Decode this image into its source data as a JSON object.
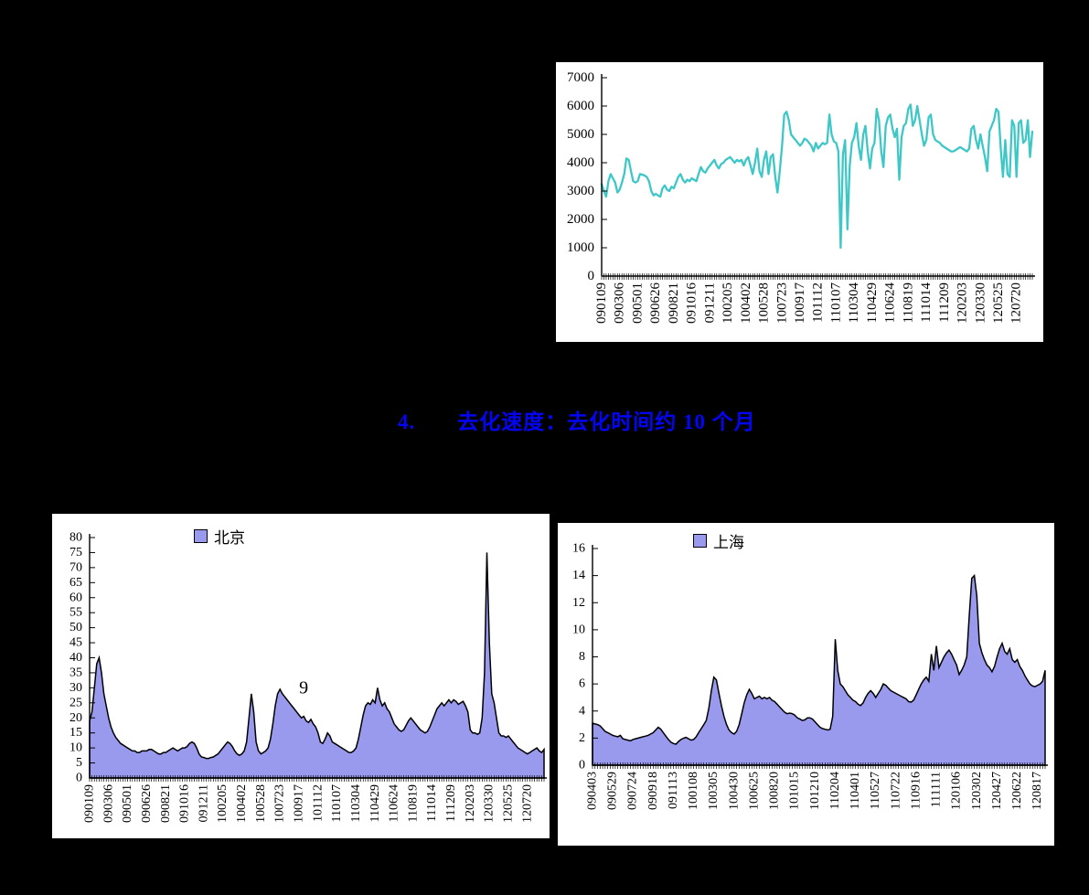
{
  "page": {
    "background": "#000000"
  },
  "heading": {
    "number": "4.",
    "text": "去化速度：去化时间约 10 个月",
    "color": "#0505F5"
  },
  "chart_data": [
    {
      "id": "weekly-volume",
      "type": "line",
      "line_color": "#3EC7C7",
      "ylim": [
        0,
        7000
      ],
      "ystep": 1000,
      "label_every": 8,
      "legend_position": "none",
      "grid": false,
      "x_labels": [
        "090109",
        "090306",
        "090501",
        "090626",
        "090821",
        "091016",
        "091211",
        "100205",
        "100402",
        "100528",
        "100723",
        "100917",
        "101112",
        "110107",
        "110304",
        "110429",
        "110624",
        "110819",
        "111014",
        "111209",
        "120203",
        "120330",
        "120525",
        "120720"
      ],
      "values": [
        3250,
        3000,
        2800,
        3350,
        3600,
        3450,
        3300,
        2950,
        3050,
        3300,
        3600,
        4150,
        4100,
        3700,
        3350,
        3300,
        3350,
        3600,
        3580,
        3550,
        3500,
        3350,
        3000,
        2850,
        2900,
        2850,
        2800,
        3100,
        3200,
        3050,
        3000,
        3150,
        3100,
        3300,
        3500,
        3600,
        3400,
        3300,
        3400,
        3350,
        3450,
        3400,
        3350,
        3600,
        3850,
        3700,
        3650,
        3800,
        3900,
        4000,
        4100,
        3900,
        3800,
        3950,
        4000,
        4100,
        4150,
        4200,
        4100,
        4000,
        4100,
        4050,
        4100,
        3900,
        4100,
        4200,
        3900,
        3600,
        4000,
        4500,
        3700,
        3500,
        4100,
        4400,
        3600,
        4200,
        4300,
        3500,
        2950,
        3700,
        4600,
        5700,
        5800,
        5500,
        5000,
        4900,
        4800,
        4700,
        4600,
        4700,
        4850,
        4800,
        4700,
        4600,
        4400,
        4700,
        4500,
        4600,
        4700,
        4650,
        4700,
        5700,
        5000,
        4750,
        4700,
        4400,
        1000,
        4300,
        4800,
        1650,
        3900,
        4700,
        4900,
        5400,
        4600,
        4100,
        5000,
        5300,
        4400,
        3800,
        4500,
        4700,
        5900,
        5500,
        4400,
        3850,
        5300,
        5600,
        5700,
        5200,
        4900,
        5200,
        3400,
        4900,
        5300,
        5400,
        5900,
        6050,
        5300,
        5500,
        6000,
        5500,
        5000,
        4600,
        4800,
        5600,
        5700,
        5000,
        4800,
        4750,
        4700,
        4600,
        4550,
        4500,
        4450,
        4400,
        4400,
        4450,
        4500,
        4550,
        4500,
        4450,
        4400,
        4500,
        5200,
        5300,
        4800,
        4500,
        5000,
        4600,
        4200,
        3700,
        5100,
        5300,
        5500,
        5900,
        5800,
        4500,
        3500,
        4800,
        3600,
        3500,
        5500,
        5300,
        3500,
        5400,
        5500,
        4700,
        4800,
        5500,
        4200,
        5100
      ]
    },
    {
      "id": "beijing-months",
      "type": "area",
      "legend": "北京",
      "fill_color": "#9999EE",
      "stroke_color": "#000000",
      "ylim": [
        0,
        80
      ],
      "ystep": 5,
      "label_every": 8,
      "legend_position": "top-center",
      "grid": false,
      "annotation": {
        "text": "9",
        "x_frac": 0.471,
        "value": 30
      },
      "x_labels": [
        "090109",
        "090306",
        "090501",
        "090626",
        "090821",
        "091016",
        "091211",
        "100205",
        "100402",
        "100528",
        "100723",
        "100917",
        "101112",
        "110107",
        "110304",
        "110429",
        "110624",
        "110819",
        "111014",
        "111209",
        "120203",
        "120330",
        "120525",
        "120720"
      ],
      "values": [
        19,
        22,
        30,
        38,
        40,
        35,
        28,
        24,
        20,
        17,
        15,
        13.5,
        12.5,
        11.5,
        11,
        10.5,
        10,
        9.5,
        9,
        9,
        8.5,
        8.5,
        9,
        9,
        9,
        9.5,
        9.5,
        9,
        8.5,
        8,
        8,
        8.5,
        8.5,
        9,
        9.5,
        10,
        9.5,
        9,
        9.5,
        10,
        10,
        10.5,
        11.5,
        12,
        11.5,
        10,
        8,
        7,
        6.8,
        6.5,
        6.5,
        6.8,
        7,
        7.5,
        8,
        9,
        10,
        11,
        12,
        11.5,
        10.5,
        9,
        8,
        7.5,
        8,
        9,
        12,
        20,
        28,
        22,
        12,
        9,
        8,
        8.5,
        9,
        10,
        13,
        18,
        24,
        28,
        29.5,
        28,
        27,
        26,
        25,
        24,
        23,
        22,
        21,
        20,
        20.5,
        19,
        18.5,
        19.5,
        18,
        17,
        15,
        12,
        11.5,
        13,
        15,
        14,
        12,
        11.5,
        11,
        10.5,
        10,
        9.5,
        9,
        8.5,
        8.5,
        9,
        10,
        13,
        17,
        21,
        24,
        25,
        24.5,
        26,
        25,
        30,
        26,
        24,
        25,
        23,
        22,
        20,
        18,
        17,
        16,
        15.5,
        16,
        17.5,
        19,
        20,
        19,
        18,
        17,
        16,
        15.5,
        15,
        15.5,
        17,
        19,
        21,
        23,
        24,
        25,
        24,
        25,
        26,
        25,
        26,
        25.5,
        24.5,
        25,
        25.5,
        24,
        22,
        16,
        15,
        15,
        14.5,
        15,
        20,
        35,
        75,
        45,
        28,
        25,
        20,
        15,
        14,
        14,
        13.5,
        14,
        13,
        12,
        11,
        10,
        9.5,
        9,
        8.5,
        8,
        8.5,
        9,
        9.5,
        10,
        9,
        8.5,
        9.5
      ]
    },
    {
      "id": "shanghai-months",
      "type": "area",
      "legend": "上海",
      "fill_color": "#9999EE",
      "stroke_color": "#000000",
      "ylim": [
        0,
        16
      ],
      "ystep": 2,
      "label_every": 8,
      "legend_position": "top-center",
      "grid": false,
      "x_labels": [
        "090403",
        "090529",
        "090724",
        "090918",
        "091113",
        "100108",
        "100305",
        "100430",
        "100625",
        "100820",
        "101015",
        "101210",
        "110204",
        "110401",
        "110527",
        "110722",
        "110916",
        "111111",
        "120106",
        "120302",
        "120427",
        "120622",
        "120817"
      ],
      "values": [
        3.1,
        3.05,
        3.0,
        2.9,
        2.7,
        2.5,
        2.4,
        2.3,
        2.2,
        2.15,
        2.1,
        2.2,
        1.95,
        1.9,
        1.85,
        1.8,
        1.9,
        1.95,
        2.0,
        2.05,
        2.1,
        2.15,
        2.2,
        2.3,
        2.4,
        2.6,
        2.8,
        2.65,
        2.4,
        2.15,
        1.9,
        1.7,
        1.6,
        1.55,
        1.75,
        1.9,
        2.0,
        2.05,
        1.95,
        1.85,
        1.9,
        2.1,
        2.4,
        2.7,
        3.0,
        3.3,
        4.2,
        5.5,
        6.5,
        6.3,
        5.3,
        4.4,
        3.6,
        3.0,
        2.6,
        2.4,
        2.3,
        2.5,
        3.0,
        3.8,
        4.6,
        5.2,
        5.6,
        5.3,
        4.9,
        5.0,
        5.1,
        4.9,
        5.0,
        4.9,
        5.0,
        4.8,
        4.7,
        4.5,
        4.3,
        4.1,
        3.9,
        3.8,
        3.85,
        3.8,
        3.7,
        3.5,
        3.4,
        3.3,
        3.35,
        3.5,
        3.5,
        3.4,
        3.2,
        3.0,
        2.8,
        2.7,
        2.65,
        2.6,
        2.65,
        3.6,
        9.3,
        7.0,
        6.0,
        5.8,
        5.5,
        5.2,
        5.0,
        4.8,
        4.7,
        4.5,
        4.4,
        4.6,
        5.0,
        5.3,
        5.5,
        5.3,
        5.0,
        5.3,
        5.6,
        6.0,
        5.9,
        5.7,
        5.5,
        5.4,
        5.3,
        5.2,
        5.1,
        5.0,
        4.9,
        4.7,
        4.65,
        4.8,
        5.2,
        5.6,
        6.0,
        6.3,
        6.5,
        6.2,
        8.2,
        7.0,
        8.8,
        7.2,
        7.6,
        8.0,
        8.3,
        8.5,
        8.2,
        7.8,
        7.4,
        6.7,
        7.0,
        7.4,
        8.0,
        11.0,
        13.8,
        14.0,
        12.5,
        9.0,
        8.3,
        7.8,
        7.4,
        7.2,
        6.9,
        7.3,
        8.0,
        8.6,
        9.0,
        8.4,
        8.2,
        8.6,
        7.8,
        7.6,
        7.8,
        7.3,
        7.0,
        6.6,
        6.3,
        6.0,
        5.85,
        5.8,
        5.9,
        6.0,
        6.2,
        7.0
      ]
    }
  ]
}
